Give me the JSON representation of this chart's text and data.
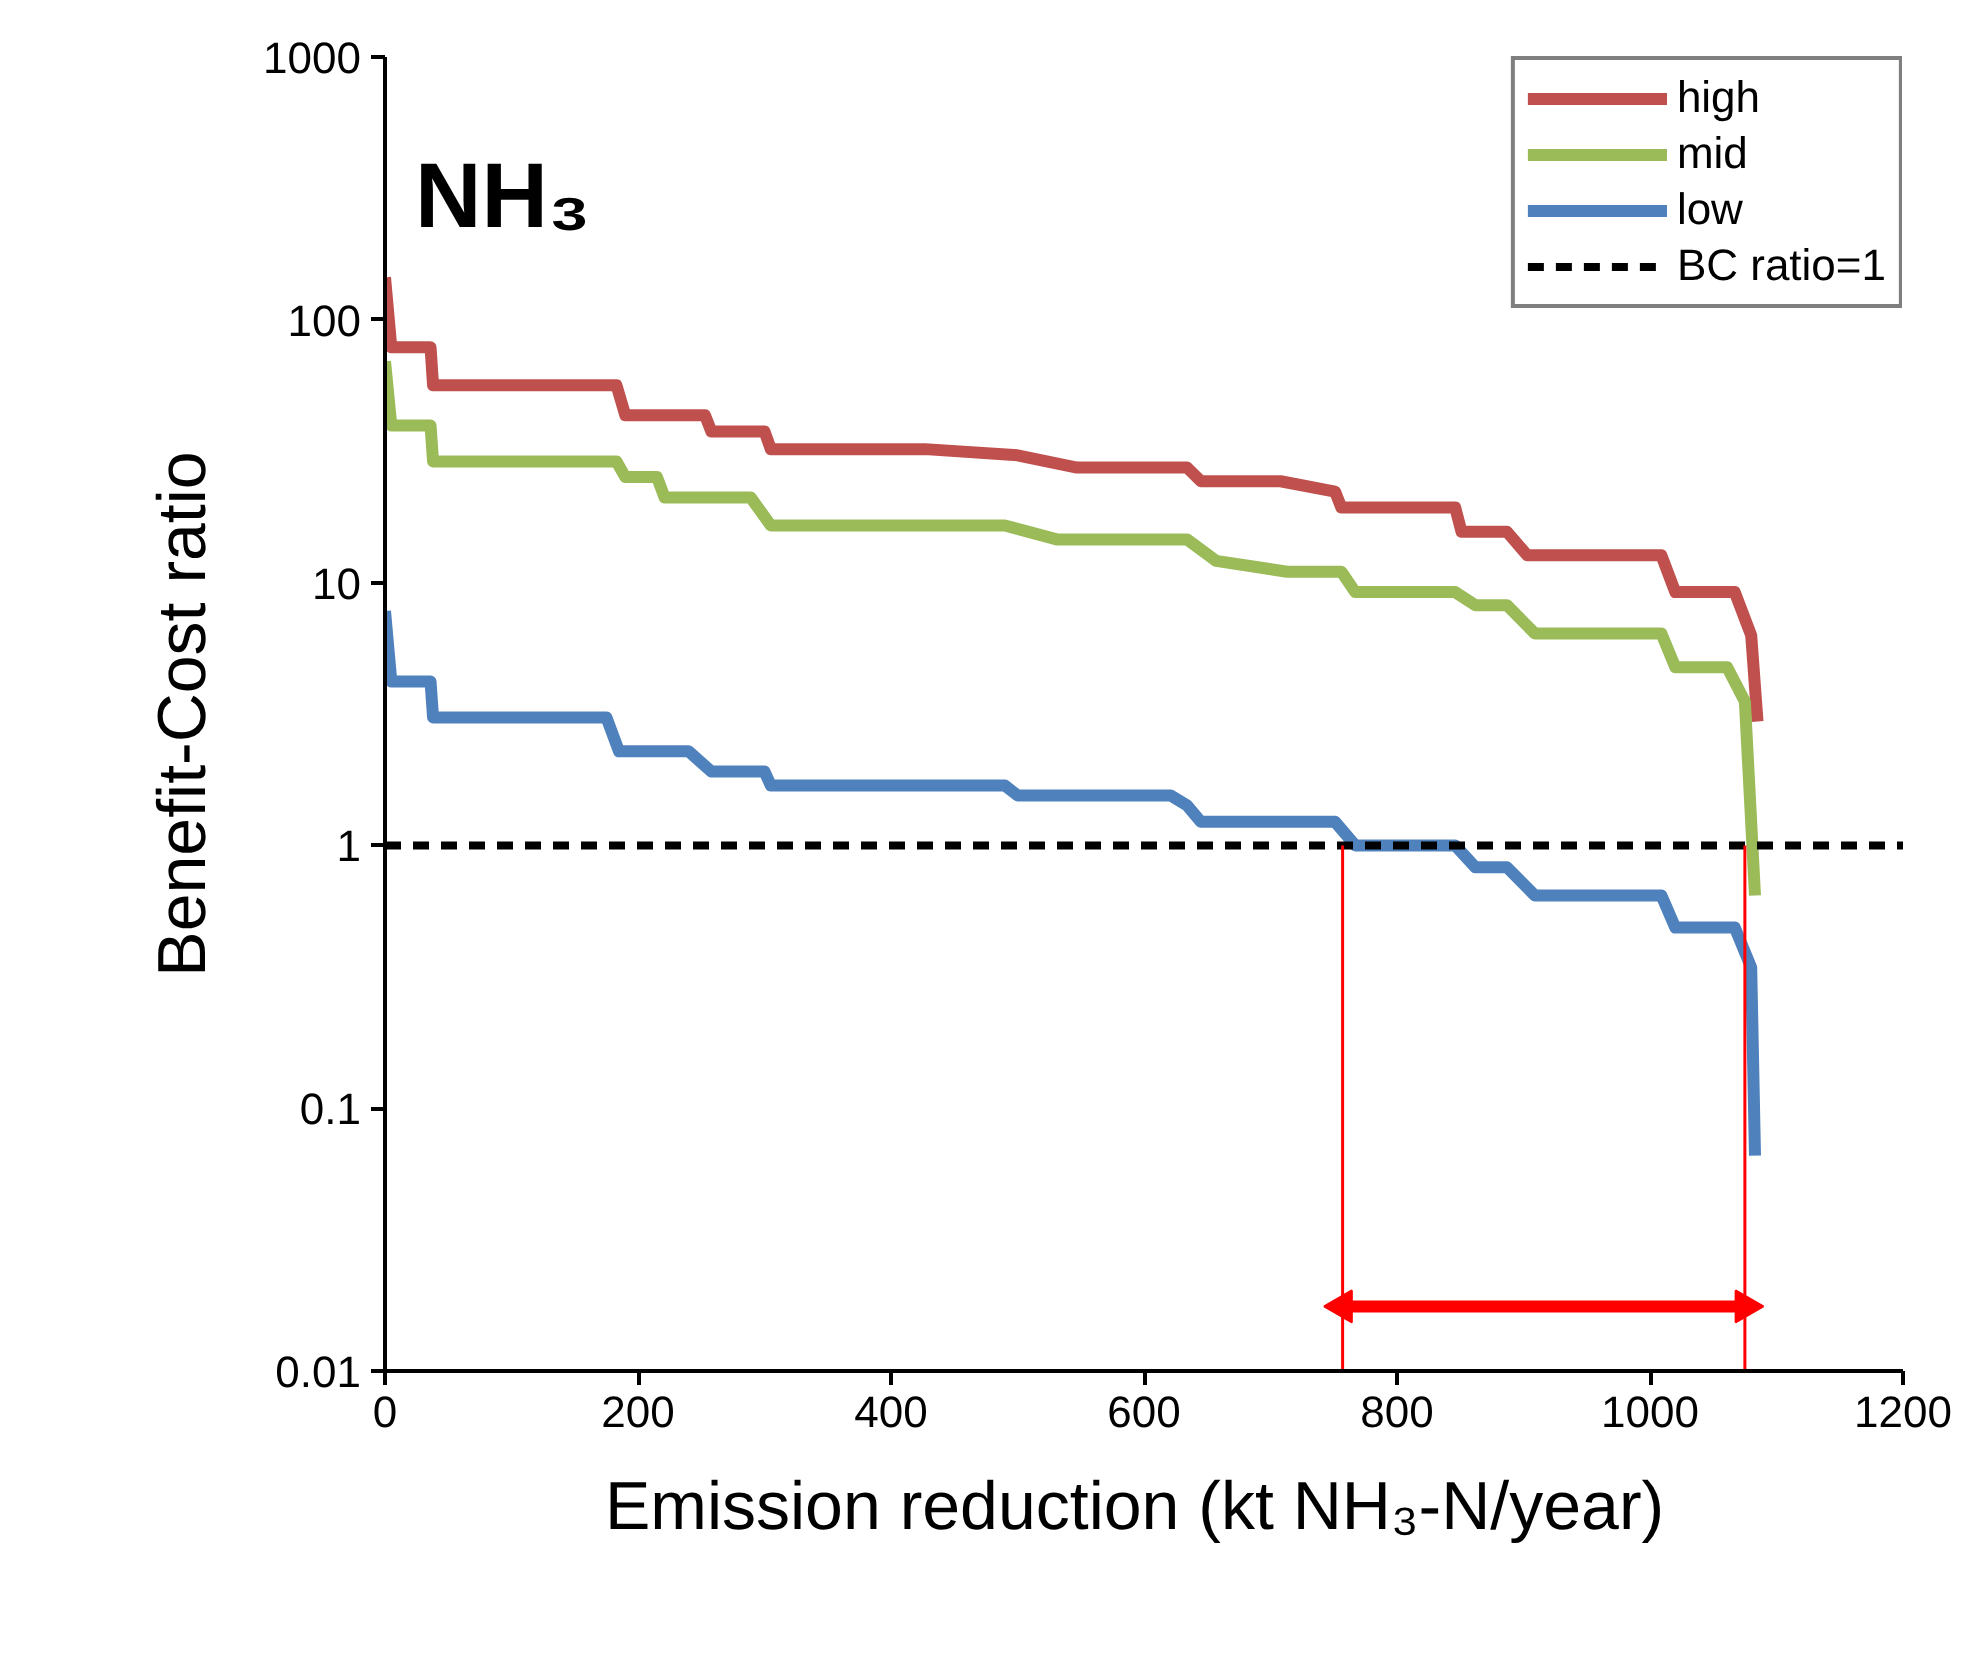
{
  "chart_data": {
    "type": "line",
    "title": "NH₃",
    "xlabel": "Emission reduction  (kt NH₃-N/year)",
    "ylabel": "Benefit-Cost ratio",
    "log": "y",
    "xlim": [
      0,
      1200
    ],
    "xticks": [
      0,
      200,
      400,
      600,
      800,
      1000,
      1200
    ],
    "ylim": [
      0.01,
      1000
    ],
    "yticks": [
      0.01,
      0.1,
      1,
      10,
      100,
      1000
    ],
    "grid": false,
    "legend": "top right",
    "line_style": "solid",
    "series": [
      {
        "name": "high",
        "color": "#c0504d",
        "x": [
          0,
          5,
          36,
          38,
          183,
          190,
          253,
          258,
          300,
          305,
          427,
          500,
          547,
          634,
          645,
          708,
          751,
          756,
          846,
          851,
          887,
          903,
          1009,
          1020,
          1067,
          1080,
          1085
        ],
        "values": [
          145,
          78.6,
          78.6,
          56.3,
          56.3,
          43.3,
          43.3,
          37.6,
          37.6,
          32.2,
          32.2,
          30.5,
          27.4,
          27.4,
          24.3,
          24.3,
          22.2,
          19.3,
          19.3,
          15.6,
          15.6,
          12.7,
          12.7,
          9.2,
          9.2,
          6.3,
          2.96
        ]
      },
      {
        "name": "mid",
        "color": "#9bbb59",
        "x": [
          0,
          5,
          36,
          38,
          183,
          190,
          215,
          221,
          289,
          305,
          490,
          531,
          634,
          657,
          713,
          756,
          767,
          846,
          862,
          887,
          909,
          1009,
          1020,
          1061,
          1075,
          1083
        ],
        "values": [
          69.5,
          39.6,
          39.6,
          28.9,
          28.9,
          25.2,
          25.2,
          21.1,
          21.1,
          16.5,
          16.5,
          14.6,
          14.6,
          12.1,
          11.0,
          11.0,
          9.2,
          9.2,
          8.2,
          8.2,
          6.4,
          6.4,
          4.76,
          4.76,
          3.53,
          0.645
        ]
      },
      {
        "type": "line",
        "color": "#ff0000",
        "x": [
          757,
          1075
        ],
        "values": [
          0.0176,
          0.0176
        ],
        "marker": "triangle"
      },
      {
        "name": "low",
        "color": "#4f81bd",
        "x": [
          0,
          5,
          36,
          38,
          175,
          185,
          240,
          258,
          300,
          305,
          490,
          500,
          621,
          634,
          645,
          751,
          767,
          846,
          862,
          887,
          909,
          1009,
          1020,
          1067,
          1080,
          1083
        ],
        "values": [
          7.8,
          4.2,
          4.2,
          3.07,
          3.07,
          2.28,
          2.28,
          1.91,
          1.91,
          1.69,
          1.69,
          1.55,
          1.55,
          1.42,
          1.23,
          1.23,
          1.0,
          1.0,
          0.825,
          0.825,
          0.645,
          0.645,
          0.487,
          0.487,
          0.343,
          0.066
        ]
      }
    ],
    "ref_lines": [
      {
        "axis": "y",
        "value": 1,
        "label": "BC ratio=1",
        "color": "#000000",
        "line_style": "dashed"
      },
      {
        "axis": "x",
        "value": 757,
        "color": "#ff0000",
        "line_style": "solid"
      },
      {
        "axis": "x",
        "value": 1075,
        "color": "#ff0000",
        "line_style": "solid"
      }
    ]
  }
}
